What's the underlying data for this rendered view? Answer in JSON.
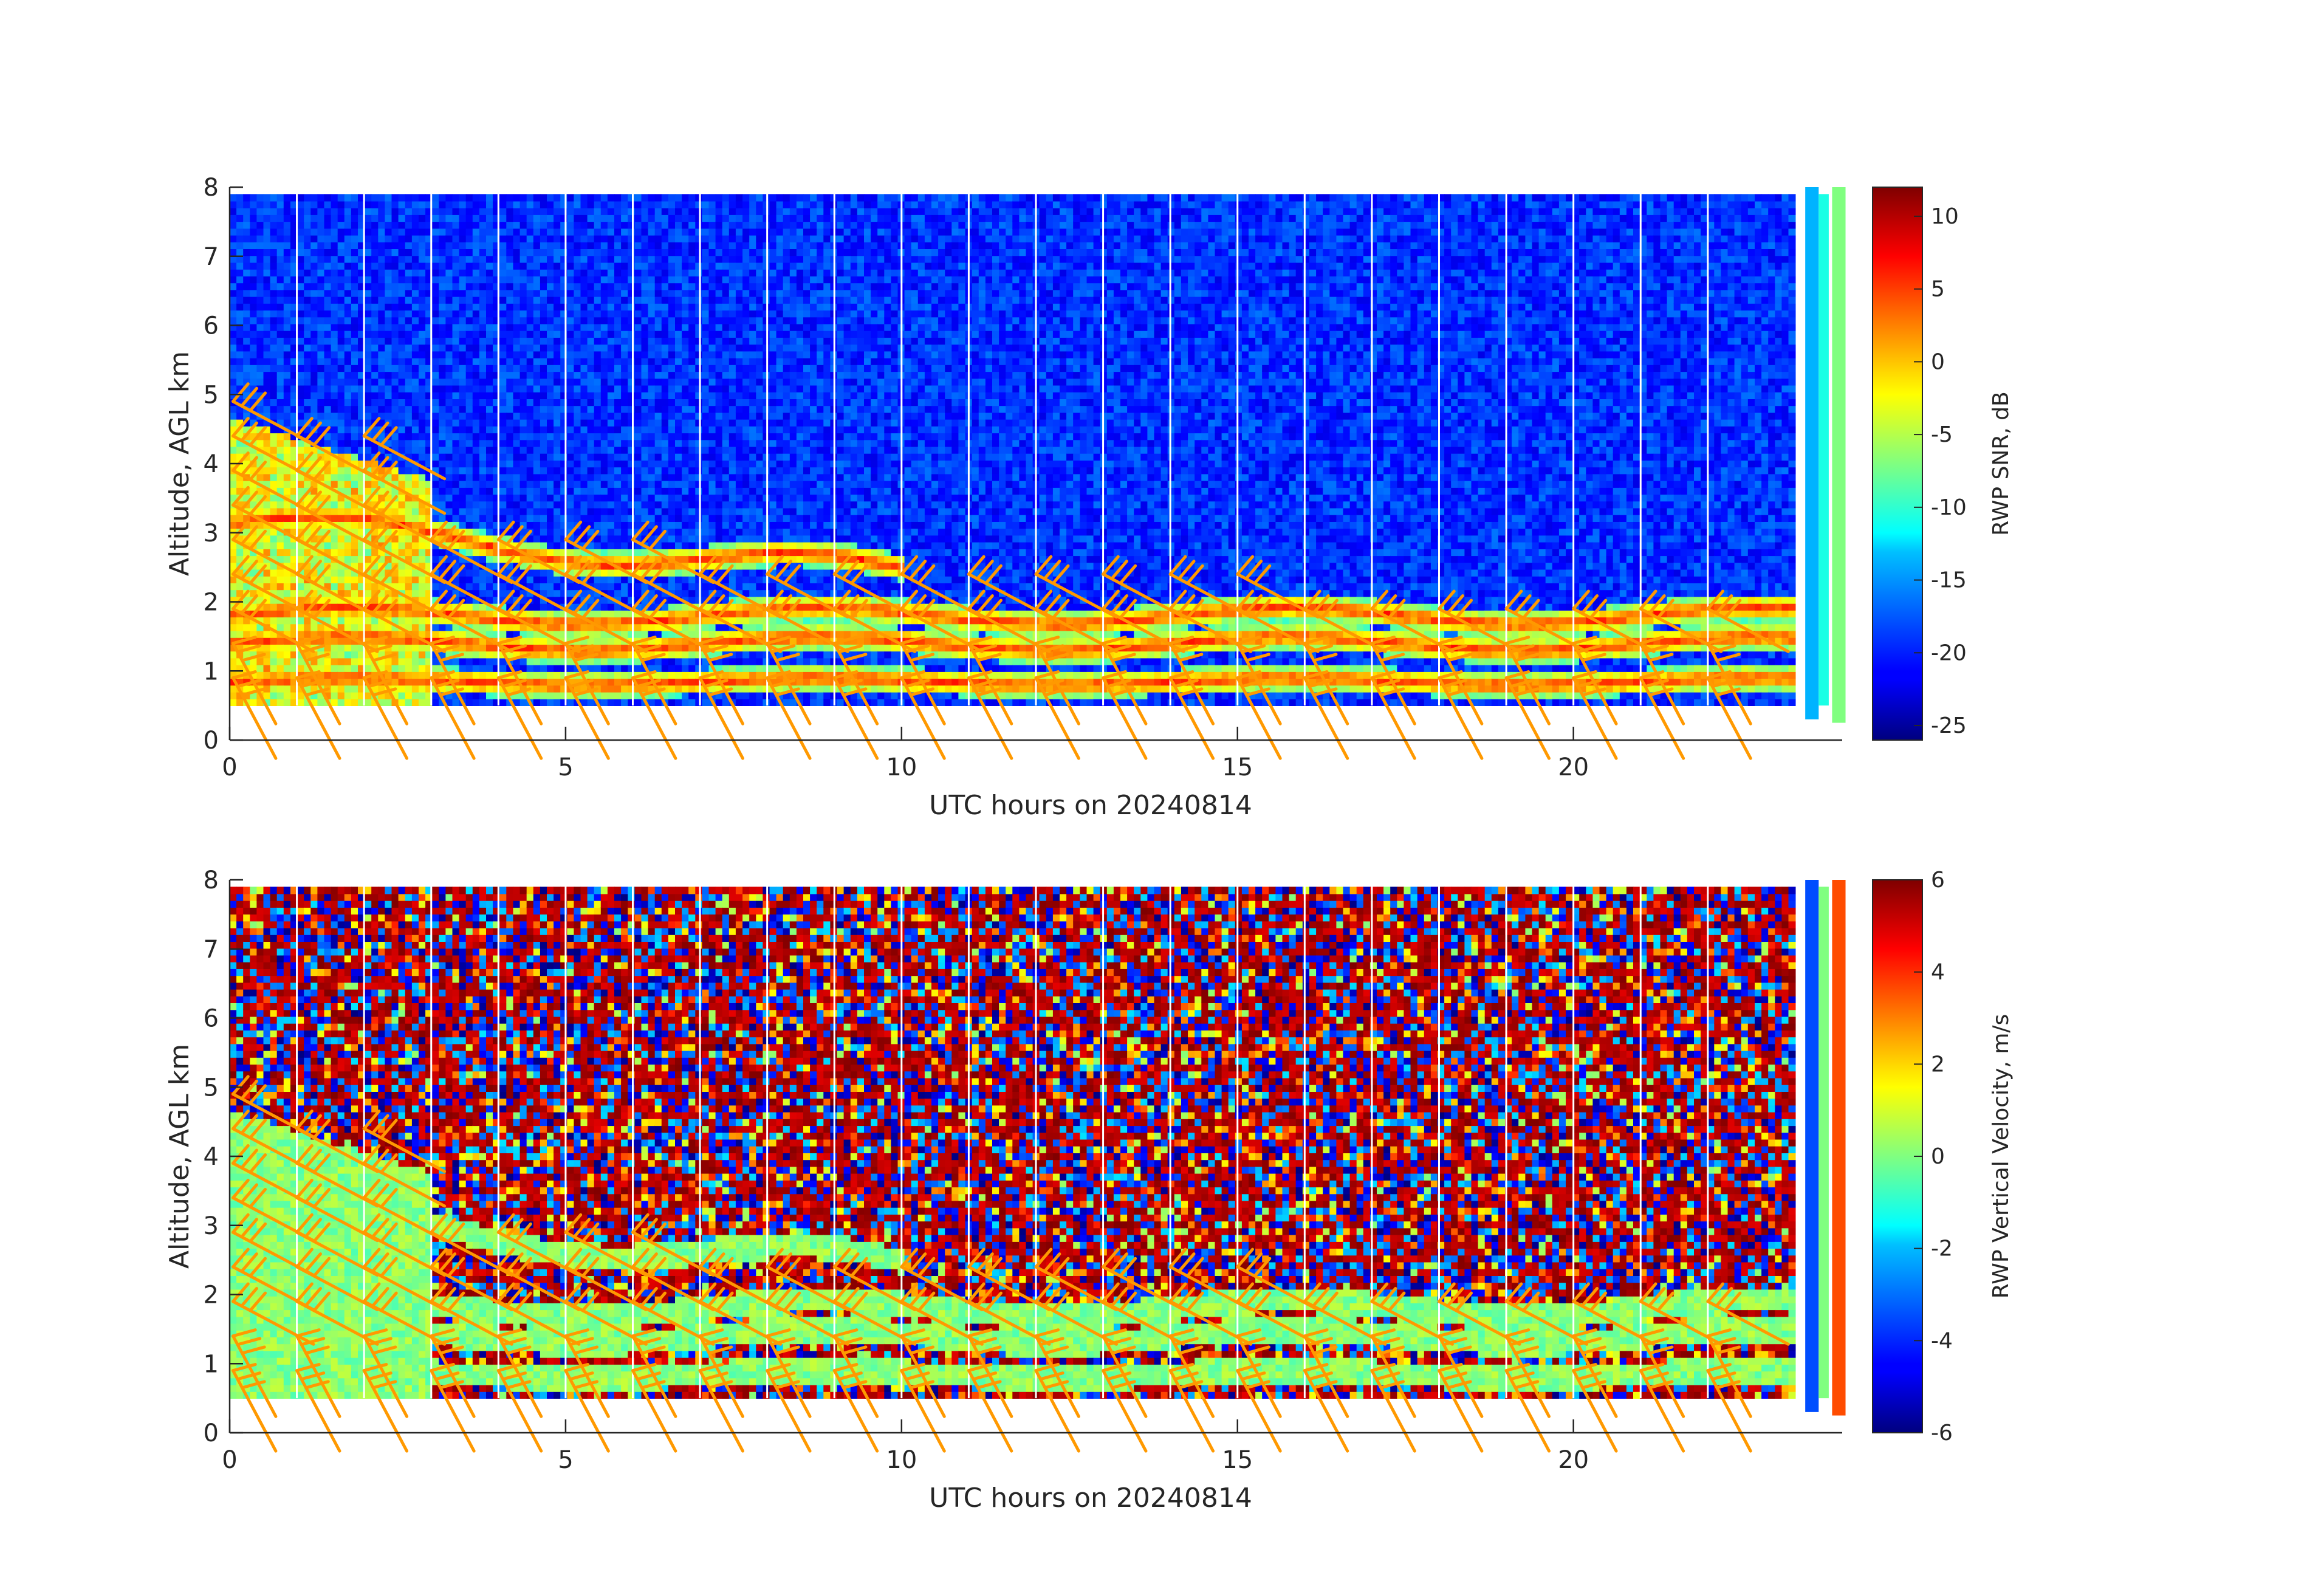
{
  "chart_data": [
    {
      "type": "heatmap",
      "xlabel": "UTC hours on 20240814",
      "ylabel": "Altitude, AGL km",
      "xlim": [
        0,
        24
      ],
      "ylim": [
        0,
        8
      ],
      "x_ticks": [
        "0",
        "5",
        "10",
        "15",
        "20"
      ],
      "y_ticks": [
        "0",
        "1",
        "2",
        "3",
        "4",
        "5",
        "6",
        "7",
        "8"
      ],
      "colorbar": {
        "label": "RWP SNR, dB",
        "range": [
          -26,
          12
        ],
        "ticks": [
          "-25",
          "-20",
          "-15",
          "-10",
          "-5",
          "0",
          "5",
          "10"
        ],
        "colormap": "jet"
      },
      "wind_barb_color": "#ff9900"
    },
    {
      "type": "heatmap",
      "xlabel": "UTC hours on 20240814",
      "ylabel": "Altitude, AGL km",
      "xlim": [
        0,
        24
      ],
      "ylim": [
        0,
        8
      ],
      "x_ticks": [
        "0",
        "5",
        "10",
        "15",
        "20"
      ],
      "y_ticks": [
        "0",
        "1",
        "2",
        "3",
        "4",
        "5",
        "6",
        "7",
        "8"
      ],
      "colorbar": {
        "label": "RWP Vertical Velocity, m/s",
        "range": [
          -6,
          6
        ],
        "ticks": [
          "-6",
          "-4",
          "-2",
          "0",
          "2",
          "4",
          "6"
        ],
        "colormap": "jet"
      },
      "wind_barb_color": "#ff9900"
    }
  ]
}
